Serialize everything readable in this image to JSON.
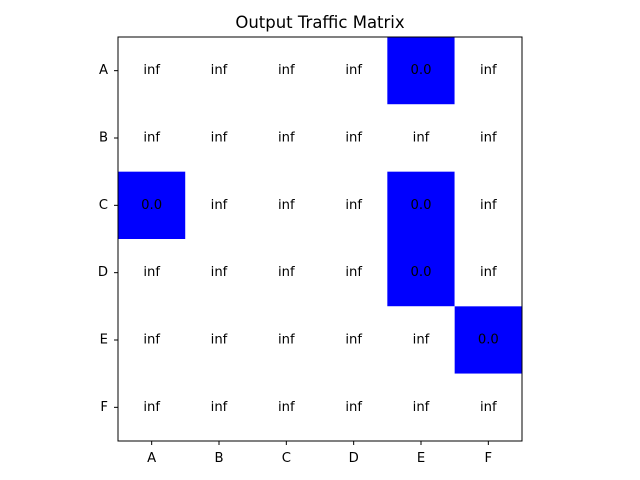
{
  "chart_data": {
    "type": "heatmap",
    "title": "Output Traffic Matrix",
    "xlabel": "",
    "ylabel": "",
    "x_categories": [
      "A",
      "B",
      "C",
      "D",
      "E",
      "F"
    ],
    "y_categories": [
      "A",
      "B",
      "C",
      "D",
      "E",
      "F"
    ],
    "values": [
      [
        "inf",
        "inf",
        "inf",
        "inf",
        "0.0",
        "inf"
      ],
      [
        "inf",
        "inf",
        "inf",
        "inf",
        "inf",
        "inf"
      ],
      [
        "0.0",
        "inf",
        "inf",
        "inf",
        "0.0",
        "inf"
      ],
      [
        "inf",
        "inf",
        "inf",
        "inf",
        "0.0",
        "inf"
      ],
      [
        "inf",
        "inf",
        "inf",
        "inf",
        "inf",
        "0.0"
      ],
      [
        "inf",
        "inf",
        "inf",
        "inf",
        "inf",
        "inf"
      ]
    ],
    "colors": {
      "zero": "#0000ff",
      "inf": "#ffffff"
    },
    "grid": false,
    "legend": "none"
  }
}
